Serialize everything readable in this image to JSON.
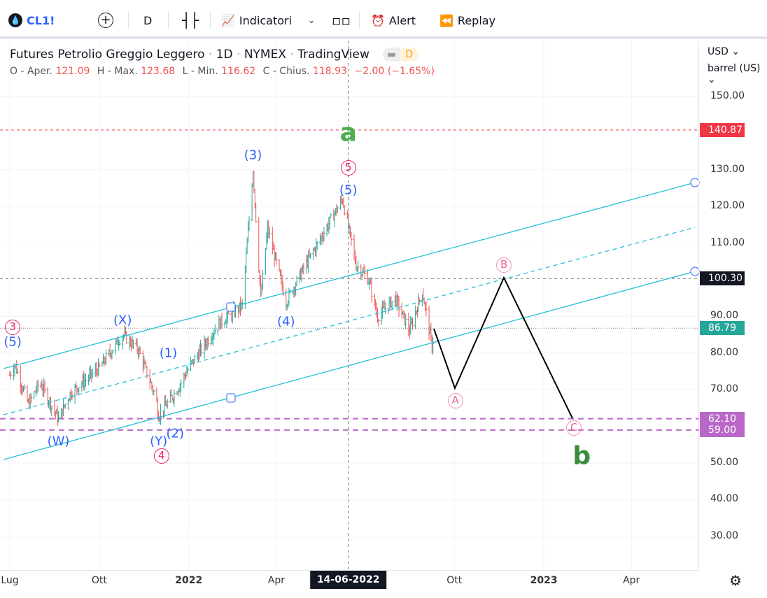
{
  "toolbar": {
    "symbol": "CL1!",
    "interval": "D",
    "indicators": "Indicatori",
    "alert": "Alert",
    "replay": "Replay"
  },
  "legend": {
    "title": "Futures Petrolio Greggio Leggero",
    "sep": "·",
    "interval": "1D",
    "exchange": "NYMEX",
    "source": "TradingView",
    "badge": "D",
    "o_label": "O - Aper.",
    "o": "121.09",
    "h_label": "H - Max.",
    "h": "123.68",
    "l_label": "L - Min.",
    "l": "116.62",
    "c_label": "C - Chius.",
    "c": "118.93",
    "chg": "−2.00 (−1.65%)"
  },
  "price_axis": {
    "currency": "USD",
    "unit": "barrel (US)",
    "ticks": [
      "150.00",
      "130.00",
      "120.00",
      "110.00",
      "90.00",
      "80.00",
      "70.00",
      "50.00",
      "40.00",
      "30.00"
    ],
    "tags": [
      {
        "label": "140.87",
        "value": 140.87,
        "color": "#f23645"
      },
      {
        "label": "100.30",
        "value": 100.3,
        "color": "#131722"
      },
      {
        "label": "86.79",
        "value": 86.79,
        "color": "#26a69a"
      },
      {
        "label": "62.10",
        "value": 62.1,
        "color": "#ba68c8"
      },
      {
        "label": "59.00",
        "value": 59.0,
        "color": "#ba68c8"
      }
    ]
  },
  "time_axis": {
    "labels": [
      {
        "t": "Lug",
        "d": 0
      },
      {
        "t": "Ott",
        "d": 92
      },
      {
        "t": "2022",
        "d": 184
      },
      {
        "t": "Apr",
        "d": 274
      },
      {
        "t": "Ott",
        "d": 457
      },
      {
        "t": "2023",
        "d": 549
      },
      {
        "t": "Apr",
        "d": 639
      }
    ],
    "crosshair": {
      "t": "14-06-2022",
      "d": 348
    }
  },
  "chart_data": {
    "type": "ohlc",
    "series_name": "CL1!",
    "path": [
      [
        0,
        74
      ],
      [
        5,
        77
      ],
      [
        19,
        66
      ],
      [
        31,
        72
      ],
      [
        50,
        62
      ],
      [
        62,
        69
      ],
      [
        92,
        76
      ],
      [
        116,
        85
      ],
      [
        132,
        81
      ],
      [
        150,
        68
      ],
      [
        153,
        63
      ],
      [
        172,
        70
      ],
      [
        184,
        76
      ],
      [
        215,
        88
      ],
      [
        239,
        93
      ],
      [
        250,
        130
      ],
      [
        258,
        95
      ],
      [
        265,
        114
      ],
      [
        284,
        94
      ],
      [
        304,
        104
      ],
      [
        342,
        122
      ],
      [
        356,
        104
      ],
      [
        369,
        100
      ],
      [
        378,
        90
      ],
      [
        396,
        95
      ],
      [
        411,
        86
      ],
      [
        424,
        97
      ],
      [
        434,
        82
      ],
      [
        437,
        86
      ]
    ]
  },
  "waves": [
    {
      "t": "(3)",
      "d": 250,
      "p": 134,
      "c": "#2962ff"
    },
    {
      "t": "(5)",
      "d": 348,
      "p": 124.5,
      "c": "#2962ff"
    },
    {
      "t": "(4)",
      "d": 284,
      "p": 88.5,
      "c": "#2962ff"
    },
    {
      "t": "(X)",
      "d": 116,
      "p": 89,
      "c": "#2962ff"
    },
    {
      "t": "(1)",
      "d": 163,
      "p": 80,
      "c": "#2962ff"
    },
    {
      "t": "(W)",
      "d": 50,
      "p": 56,
      "c": "#2962ff"
    },
    {
      "t": "(Y)",
      "d": 153,
      "p": 56,
      "c": "#2962ff"
    },
    {
      "t": "(2)",
      "d": 170,
      "p": 58,
      "c": "#2962ff"
    },
    {
      "t": "(5)",
      "d": 3,
      "p": 83,
      "c": "#2962ff"
    },
    {
      "t": "a",
      "d": 348,
      "p": 140,
      "c": "#4caf50"
    },
    {
      "t": "b",
      "d": 588,
      "p": 52,
      "c": "#388e3c"
    }
  ],
  "circled": [
    {
      "t": "3",
      "d": 3,
      "p": 87
    },
    {
      "t": "5",
      "d": 348,
      "p": 130.5
    },
    {
      "t": "4",
      "d": 156,
      "p": 52
    },
    {
      "t": "A",
      "d": 458,
      "p": 67
    },
    {
      "t": "B",
      "d": 508,
      "p": 104
    },
    {
      "t": "C",
      "d": 580,
      "p": 59.5
    }
  ]
}
